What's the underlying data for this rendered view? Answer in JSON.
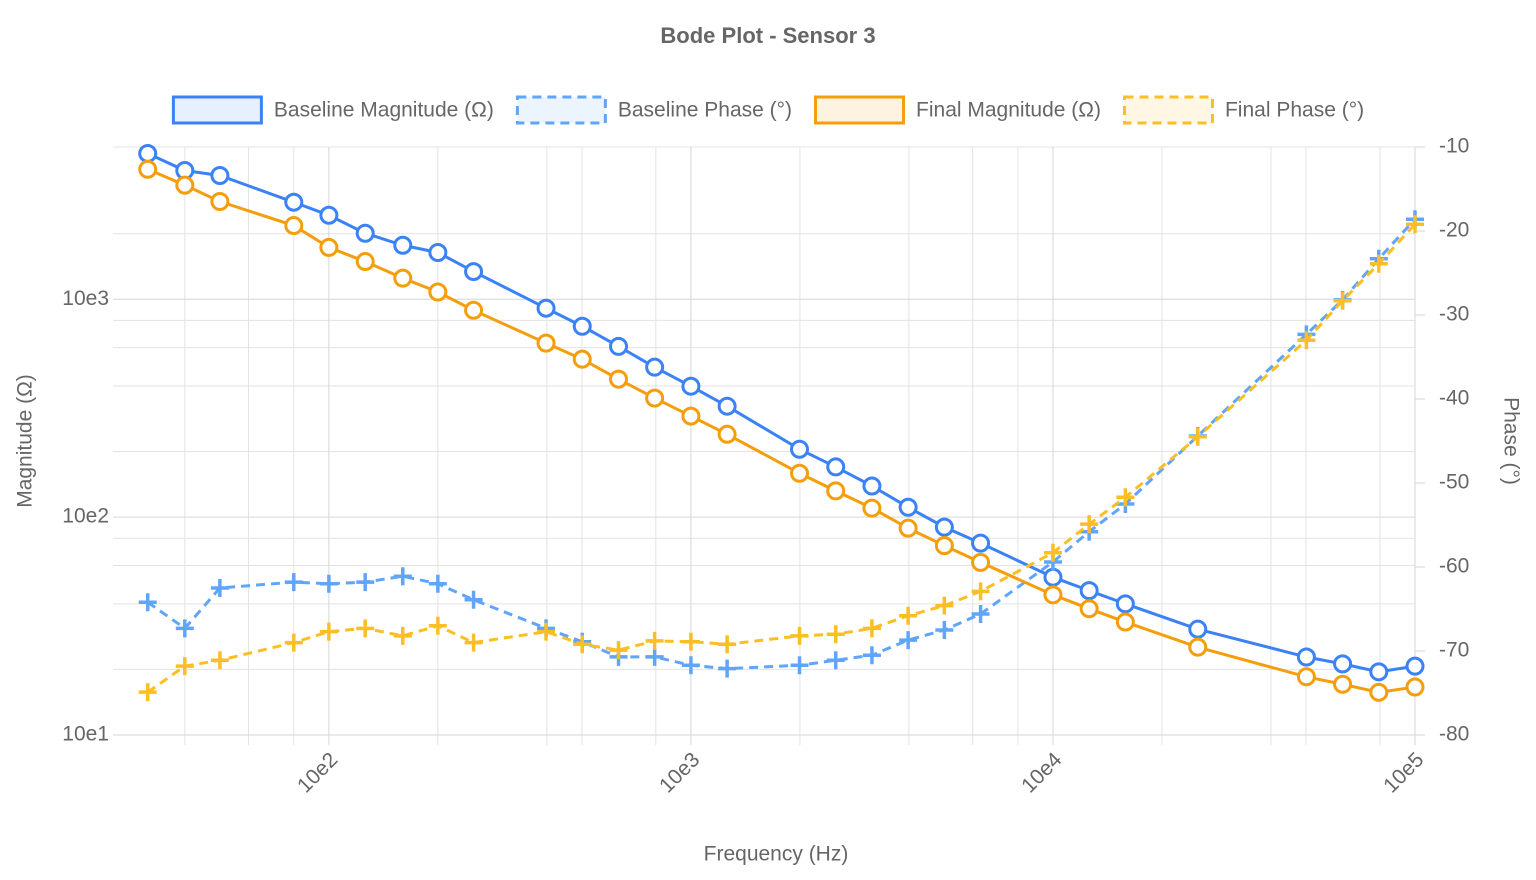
{
  "chart_data": {
    "type": "line",
    "title": "Bode Plot - Sensor 3",
    "x_label": "Frequency (Hz)",
    "y_label": "Magnitude (Ω)",
    "y2_label": "Phase (°)",
    "x_log": true,
    "y_log": true,
    "grid": true,
    "legend": "top",
    "xlim": [
      27,
      100000
    ],
    "xticks": [
      {
        "value": 100,
        "label": "10e2"
      },
      {
        "value": 1000,
        "label": "10e3"
      },
      {
        "value": 10000,
        "label": "10e4"
      },
      {
        "value": 100000,
        "label": "10e5"
      }
    ],
    "xgrid_minor": [
      40,
      60,
      80,
      200,
      400,
      500,
      800,
      2000,
      4000,
      6000,
      8000,
      20000,
      40000,
      50000,
      80000
    ],
    "ylim": [
      10,
      5000
    ],
    "yticks": [
      {
        "value": 10,
        "label": "10e1"
      },
      {
        "value": 100,
        "label": "10e2"
      },
      {
        "value": 1000,
        "label": "10e3"
      }
    ],
    "ygrid_minor": [
      20,
      40,
      60,
      80,
      200,
      400,
      600,
      800,
      2000,
      5000
    ],
    "y2lim": [
      -80,
      -10
    ],
    "y2ticks": [
      -80,
      -70,
      -60,
      -50,
      -40,
      -30,
      -20,
      -10
    ],
    "x": [
      31.6,
      40,
      50,
      80,
      100,
      126,
      160,
      200,
      251,
      398,
      501,
      631,
      794,
      1000,
      1259,
      1995,
      2512,
      3162,
      3981,
      5012,
      6310,
      10000,
      12589,
      15849,
      25119,
      50119,
      63096,
      79433,
      100000
    ],
    "series": [
      {
        "name": "Baseline Magnitude (Ω)",
        "color": "#3b82f6",
        "marker": "circle",
        "dashed": false,
        "values": [
          4670,
          3900,
          3700,
          2790,
          2430,
          2010,
          1770,
          1640,
          1340,
          910,
          752,
          608,
          488,
          399,
          323,
          205,
          170,
          139,
          111,
          90,
          76,
          53,
          46,
          40,
          30.6,
          22.8,
          21.2,
          19.5,
          20.7
        ]
      },
      {
        "name": "Baseline Phase (°)",
        "color": "#60a5fa",
        "marker": "cross",
        "dashed": true,
        "axis": "y2",
        "values": [
          -64.2,
          -67.3,
          -62.5,
          -61.8,
          -62.0,
          -61.8,
          -61.1,
          -62.0,
          -63.9,
          -67.3,
          -68.9,
          -70.7,
          -70.7,
          -71.7,
          -72.1,
          -71.7,
          -71.1,
          -70.5,
          -68.7,
          -67.5,
          -65.6,
          -59.4,
          -55.8,
          -52.5,
          -44.4,
          -32.3,
          -28.2,
          -23.3,
          -18.6
        ]
      },
      {
        "name": "Final Magnitude (Ω)",
        "color": "#f59e0b",
        "marker": "circle",
        "dashed": false,
        "values": [
          3950,
          3340,
          2810,
          2180,
          1730,
          1490,
          1250,
          1080,
          890,
          629,
          531,
          430,
          352,
          291,
          240,
          159,
          132,
          110,
          89,
          74,
          62,
          44,
          38,
          33,
          25.3,
          18.5,
          17.1,
          15.7,
          16.6
        ]
      },
      {
        "name": "Final Phase (°)",
        "color": "#fbbf24",
        "marker": "cross",
        "dashed": true,
        "axis": "y2",
        "values": [
          -74.9,
          -71.8,
          -71.1,
          -69.0,
          -67.7,
          -67.3,
          -68.2,
          -67.0,
          -69.0,
          -67.7,
          -69.2,
          -69.9,
          -68.8,
          -68.9,
          -69.2,
          -68.2,
          -68.0,
          -67.3,
          -65.8,
          -64.6,
          -62.9,
          -58.3,
          -54.9,
          -51.7,
          -44.5,
          -33.0,
          -28.3,
          -23.9,
          -19.2
        ]
      }
    ]
  }
}
